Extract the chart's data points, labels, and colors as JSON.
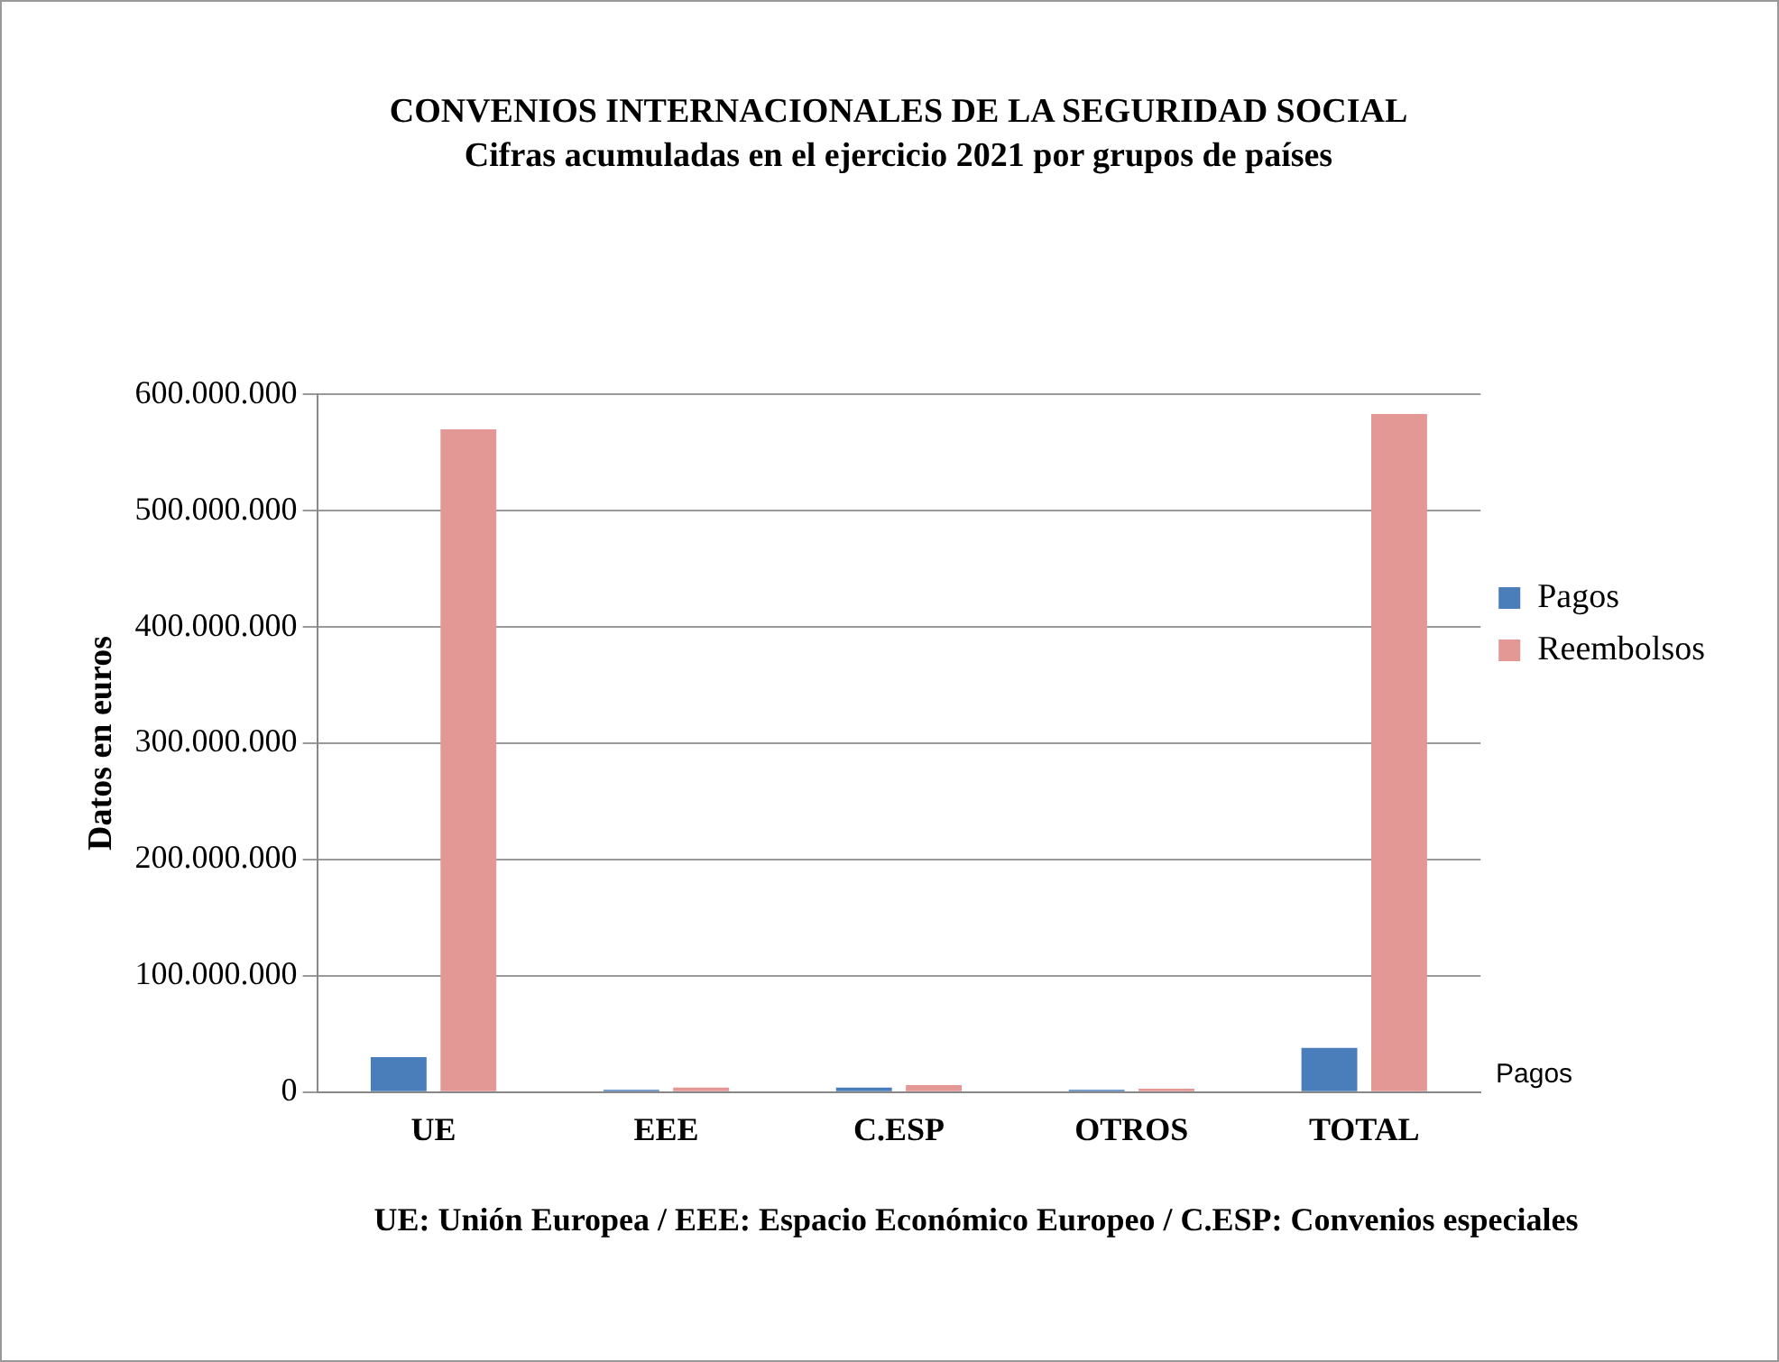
{
  "chart_data": {
    "type": "bar",
    "title": "CONVENIOS INTERNACIONALES DE LA SEGURIDAD SOCIAL",
    "subtitle": "Cifras acumuladas en el ejercicio 2021 por grupos de países",
    "ylabel": "Datos en euros",
    "categories": [
      "UE",
      "EEE",
      "C.ESP",
      "OTROS",
      "TOTAL"
    ],
    "series": [
      {
        "name": "Pagos",
        "color": "#4a7ebb",
        "values": [
          30000000,
          2000000,
          4000000,
          2000000,
          38000000
        ]
      },
      {
        "name": "Reembolsos",
        "color": "#e39896",
        "values": [
          570000000,
          4000000,
          6000000,
          3000000,
          583000000
        ]
      }
    ],
    "ylim": [
      0,
      600000000
    ],
    "yticks": [
      {
        "value": 0,
        "label": "0"
      },
      {
        "value": 100000000,
        "label": "100.000.000"
      },
      {
        "value": 200000000,
        "label": "200.000.000"
      },
      {
        "value": 300000000,
        "label": "300.000.000"
      },
      {
        "value": 400000000,
        "label": "400.000.000"
      },
      {
        "value": 500000000,
        "label": "500.000.000"
      },
      {
        "value": 600000000,
        "label": "600.000.000"
      }
    ],
    "grid": "y",
    "legend": "right",
    "annotations": [
      "Pagos",
      "UE: Unión Europea  /  EEE: Espacio Económico Europeo  /  C.ESP: Convenios especiales"
    ]
  }
}
